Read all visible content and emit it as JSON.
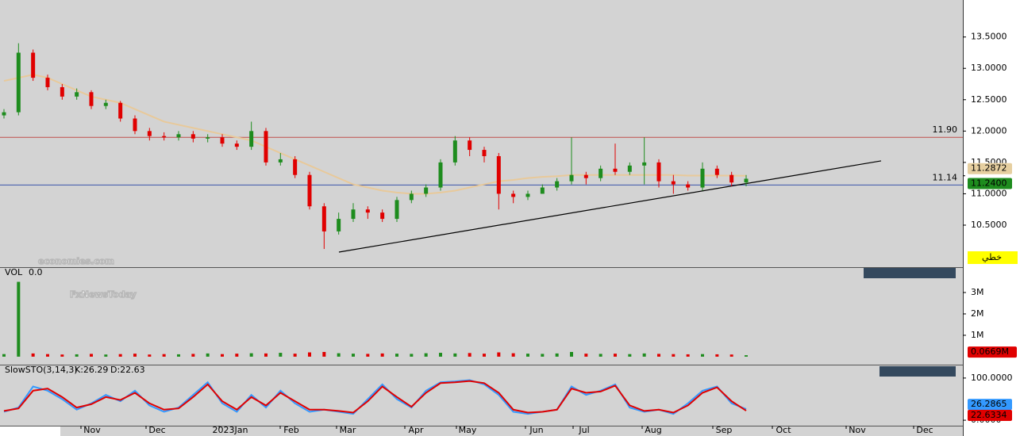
{
  "chart_data": [
    {
      "type": "candlestick",
      "open": [
        12.25,
        12.3,
        13.25,
        12.85,
        12.7,
        12.55,
        12.62,
        12.4,
        12.45,
        12.2,
        12.0,
        11.92,
        11.9,
        11.95,
        11.88,
        11.9,
        11.8,
        11.75,
        12.0,
        11.5,
        11.55,
        11.3,
        10.8,
        10.4,
        10.6,
        10.75,
        10.7,
        10.6,
        10.9,
        11.0,
        11.1,
        11.5,
        11.85,
        11.7,
        11.6,
        11.0,
        10.95,
        11.0,
        11.1,
        11.2,
        11.3,
        11.25,
        11.4,
        11.35,
        11.45,
        11.5,
        11.2,
        11.15,
        11.1,
        11.4,
        11.3,
        11.18
      ],
      "high": [
        12.35,
        13.4,
        13.3,
        12.9,
        12.75,
        12.68,
        12.65,
        12.5,
        12.48,
        12.25,
        12.05,
        11.98,
        12.0,
        12.0,
        11.95,
        11.95,
        11.85,
        12.15,
        12.05,
        11.65,
        11.6,
        11.35,
        10.85,
        10.7,
        10.85,
        10.8,
        10.75,
        10.95,
        11.05,
        11.15,
        11.55,
        11.92,
        11.9,
        11.75,
        11.65,
        11.05,
        11.05,
        11.15,
        11.25,
        11.9,
        11.35,
        11.45,
        11.8,
        11.5,
        11.9,
        11.55,
        11.3,
        11.2,
        11.5,
        11.45,
        11.35,
        11.3
      ],
      "low": [
        12.2,
        12.25,
        12.8,
        12.65,
        12.5,
        12.5,
        12.35,
        12.35,
        12.15,
        11.95,
        11.85,
        11.85,
        11.85,
        11.82,
        11.82,
        11.75,
        11.7,
        11.7,
        11.45,
        11.45,
        11.25,
        10.75,
        10.12,
        10.35,
        10.55,
        10.6,
        10.55,
        10.55,
        10.85,
        10.95,
        11.05,
        11.45,
        11.6,
        11.5,
        10.75,
        10.85,
        10.9,
        11.0,
        11.05,
        11.15,
        11.15,
        11.2,
        11.3,
        11.3,
        11.15,
        11.1,
        11.0,
        11.05,
        11.05,
        11.25,
        11.12,
        11.12
      ],
      "close": [
        12.3,
        13.25,
        12.85,
        12.7,
        12.55,
        12.62,
        12.4,
        12.45,
        12.2,
        12.0,
        11.92,
        11.9,
        11.95,
        11.88,
        11.9,
        11.8,
        11.75,
        12.0,
        11.5,
        11.55,
        11.3,
        10.8,
        10.4,
        10.6,
        10.75,
        10.7,
        10.6,
        10.9,
        11.0,
        11.1,
        11.5,
        11.85,
        11.7,
        11.6,
        11.0,
        10.95,
        11.0,
        11.1,
        11.2,
        11.3,
        11.25,
        11.4,
        11.35,
        11.45,
        11.5,
        11.2,
        11.15,
        11.1,
        11.4,
        11.3,
        11.18,
        11.24
      ],
      "close_value_label": "11.2400",
      "up_color": "#1e8c1e",
      "down_color": "#e00000",
      "ma": {
        "color": "#e8c99a",
        "values": [
          12.8,
          12.85,
          12.9,
          12.85,
          12.75,
          12.65,
          12.55,
          12.5,
          12.45,
          12.35,
          12.25,
          12.15,
          12.1,
          12.05,
          12.0,
          11.95,
          11.9,
          11.85,
          11.75,
          11.65,
          11.55,
          11.45,
          11.35,
          11.25,
          11.15,
          11.1,
          11.05,
          11.02,
          11.0,
          11.0,
          11.02,
          11.05,
          11.1,
          11.15,
          11.2,
          11.22,
          11.25,
          11.27,
          11.28,
          11.3,
          11.3,
          11.3,
          11.3,
          11.3,
          11.3,
          11.3,
          11.3,
          11.29,
          11.29,
          11.29,
          11.29,
          11.2872
        ]
      },
      "hlines": [
        {
          "value": 11.9,
          "label": "11.90",
          "color": "#c0504d"
        },
        {
          "value": 11.14,
          "label": "11.14",
          "color": "#3a55a8"
        }
      ],
      "trendline": {
        "values": [
          10.07,
          11.525
        ],
        "color": "#000000"
      },
      "mode_label": "خطي",
      "ylim": [
        9.83,
        14.09
      ],
      "yticks": [
        {
          "value": 10.5,
          "label": "10.5000"
        },
        {
          "value": 11,
          "label": "11.0000"
        },
        {
          "value": 11.5,
          "label": "11.5000"
        },
        {
          "value": 12,
          "label": "12.0000"
        },
        {
          "value": 12.5,
          "label": "12.5000"
        },
        {
          "value": 13,
          "label": "13.0000"
        },
        {
          "value": 13.5,
          "label": "13.5000"
        }
      ],
      "watermarks": [
        "economies.com",
        "FxNewsToday"
      ]
    },
    {
      "type": "bar",
      "title": "VOL",
      "readout": "0.0",
      "values": [
        0.12,
        3.5,
        0.15,
        0.12,
        0.1,
        0.11,
        0.13,
        0.1,
        0.12,
        0.14,
        0.1,
        0.12,
        0.11,
        0.13,
        0.15,
        0.12,
        0.14,
        0.16,
        0.15,
        0.18,
        0.14,
        0.2,
        0.22,
        0.16,
        0.14,
        0.13,
        0.15,
        0.14,
        0.13,
        0.16,
        0.18,
        0.15,
        0.17,
        0.14,
        0.2,
        0.16,
        0.14,
        0.13,
        0.15,
        0.22,
        0.14,
        0.13,
        0.14,
        0.12,
        0.15,
        0.13,
        0.12,
        0.11,
        0.12,
        0.11,
        0.1,
        0.0669
      ],
      "last_value_label": "0.0669M",
      "ylim": [
        -0.3,
        4.15
      ],
      "yticks": [
        {
          "value": 1,
          "label": "1M"
        },
        {
          "value": 2,
          "label": "2M"
        },
        {
          "value": 3,
          "label": "3M"
        }
      ]
    },
    {
      "type": "line",
      "title": "SlowSTO(3,14,3)",
      "readouts": [
        "K:26.29",
        "D:22.63"
      ],
      "series": [
        {
          "color": "#3399ff",
          "values": [
            20,
            30,
            80,
            70,
            50,
            25,
            40,
            60,
            45,
            70,
            35,
            20,
            30,
            60,
            90,
            40,
            20,
            60,
            30,
            70,
            40,
            20,
            25,
            20,
            15,
            50,
            85,
            50,
            30,
            70,
            90,
            92,
            95,
            85,
            60,
            20,
            15,
            20,
            25,
            80,
            60,
            70,
            85,
            30,
            20,
            25,
            15,
            40,
            70,
            80,
            40,
            26.2865
          ],
          "last_label": "26.2865"
        },
        {
          "color": "#e00000",
          "values": [
            22,
            28,
            70,
            75,
            55,
            30,
            38,
            55,
            48,
            65,
            40,
            25,
            28,
            55,
            85,
            45,
            25,
            55,
            35,
            65,
            45,
            25,
            25,
            22,
            18,
            45,
            80,
            55,
            32,
            65,
            88,
            90,
            93,
            88,
            65,
            25,
            18,
            20,
            25,
            75,
            65,
            68,
            82,
            35,
            22,
            25,
            18,
            35,
            65,
            78,
            45,
            22.6334
          ],
          "last_label": "22.6334"
        }
      ],
      "ylim": [
        -13,
        128
      ],
      "yticks": [
        {
          "value": 0,
          "label": "0.0000"
        },
        {
          "value": 100,
          "label": "100.0000"
        }
      ]
    }
  ],
  "time_axis": [
    "Nov",
    "Dec",
    "2023Jan",
    "Feb",
    "Mar",
    "Apr",
    "May",
    "Jun",
    "Jul",
    "Aug",
    "Sep",
    "Oct",
    "Nov",
    "Dec"
  ]
}
